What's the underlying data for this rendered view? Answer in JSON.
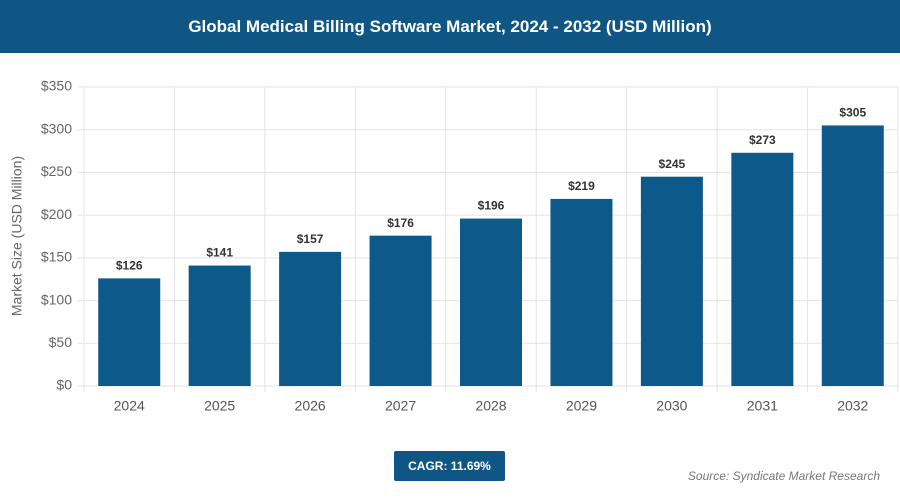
{
  "chart_data": {
    "type": "bar",
    "title": "Global Medical Billing Software Market, 2024 - 2032 (USD Million)",
    "y_label": "Market Size (USD Million)",
    "categories": [
      "2024",
      "2025",
      "2026",
      "2027",
      "2028",
      "2029",
      "2030",
      "2031",
      "2032"
    ],
    "values": [
      126,
      141,
      157,
      176,
      196,
      219,
      245,
      273,
      305
    ],
    "value_labels": [
      "$126",
      "$141",
      "$157",
      "$176",
      "$196",
      "$219",
      "$245",
      "$273",
      "$305"
    ],
    "color": "#0d5a8a",
    "ylim": [
      0,
      350
    ],
    "yticks": [
      {
        "value": 0,
        "label": "$0"
      },
      {
        "value": 50,
        "label": "$50"
      },
      {
        "value": 100,
        "label": "$100"
      },
      {
        "value": 150,
        "label": "$150"
      },
      {
        "value": 200,
        "label": "$200"
      },
      {
        "value": 250,
        "label": "$250"
      },
      {
        "value": 300,
        "label": "$300"
      },
      {
        "value": 350,
        "label": "$350"
      }
    ],
    "grid": true,
    "annotations": [
      "CAGR: 11.69%",
      "Source: Syndicate Market Research"
    ]
  }
}
